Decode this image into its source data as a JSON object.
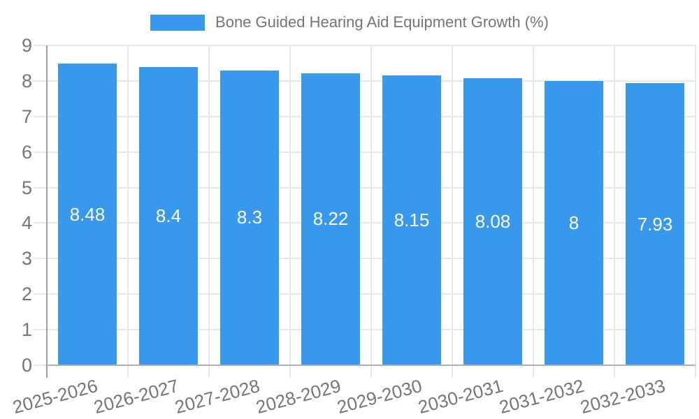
{
  "legend": {
    "label": "Bone Guided Hearing Aid Equipment Growth (%)"
  },
  "chart_data": {
    "type": "bar",
    "title": "Bone Guided Hearing Aid Equipment Growth (%)",
    "categories": [
      "2025-2026",
      "2026-2027",
      "2027-2028",
      "2028-2029",
      "2029-2030",
      "2030-2031",
      "2031-2032",
      "2032-2033"
    ],
    "values": [
      8.48,
      8.4,
      8.3,
      8.22,
      8.15,
      8.08,
      8,
      7.93
    ],
    "value_labels": [
      "8.48",
      "8.4",
      "8.3",
      "8.22",
      "8.15",
      "8.08",
      "8",
      "7.93"
    ],
    "xlabel": "",
    "ylabel": "",
    "ylim": [
      0,
      9
    ],
    "yticks": [
      0,
      1,
      2,
      3,
      4,
      5,
      6,
      7,
      8,
      9
    ],
    "grid": true,
    "legend_position": "top",
    "colors": {
      "bar": "#3899EC",
      "value_label": "#ffffff",
      "axis_text": "#757575",
      "gridline": "#e8e8e8",
      "y_axis_line": "#9e9e9e",
      "x_axis_line": "#b0b0b0"
    }
  }
}
